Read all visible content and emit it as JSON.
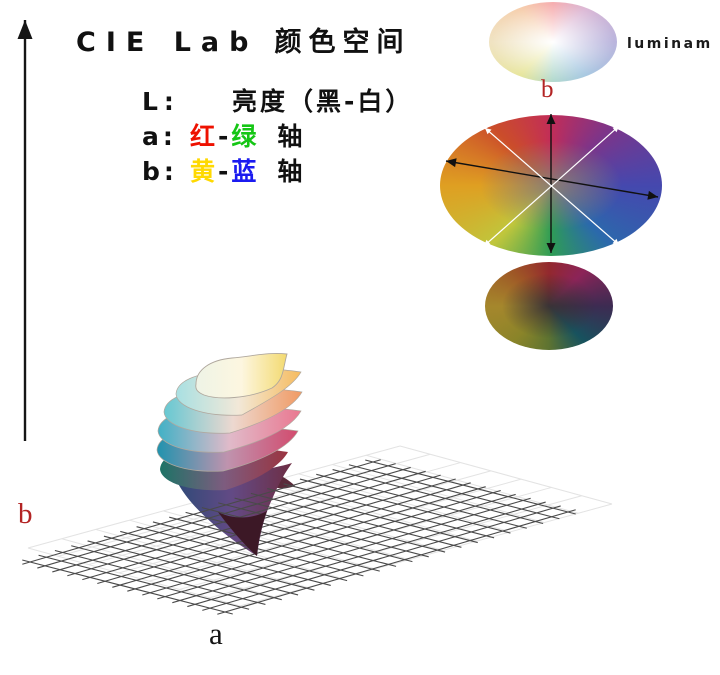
{
  "title": {
    "latin": "CIE Lab",
    "cjk": "颜色空间"
  },
  "legend": {
    "line_l": {
      "key": "L:",
      "value": "亮度（黑-白）"
    },
    "line_a": {
      "key": "a:",
      "first": "红",
      "dash": "-",
      "second": "绿",
      "suffix": "轴"
    },
    "line_b": {
      "key": "b:",
      "first": "黄",
      "dash": "-",
      "second": "蓝",
      "suffix": "轴"
    }
  },
  "colors": {
    "red": "#ee1100",
    "green": "#15c615",
    "yellow": "#ffd900",
    "blue": "#1b1bf0",
    "label_red": "#b32424",
    "text": "#111111"
  },
  "right_panel": {
    "luminance_label": "luminam",
    "b_label": "b"
  },
  "axes": {
    "a_label": "a",
    "b_label": "b"
  },
  "ellipses": {
    "top": {
      "ring": [
        "#f0e3c2",
        "#f6cfae",
        "#f6aeb0",
        "#dcb9d6",
        "#bab5dd",
        "#a9c9e2",
        "#b4dacf",
        "#e8e69e"
      ],
      "center": "#ffffff",
      "center_fade": "68%"
    },
    "wheel": {
      "ring": [
        "#df9f22",
        "#cb4d2a",
        "#c22d58",
        "#7e3488",
        "#4548ae",
        "#2b69ac",
        "#2e9c55",
        "#c0c63c"
      ],
      "center": "#8b7e72",
      "center_fade": "45%"
    },
    "bottom": {
      "ring": [
        "#a5872c",
        "#9e5526",
        "#93282e",
        "#8c2458",
        "#3d2b52",
        "#17525e",
        "#5d7331",
        "#8a8429"
      ],
      "center": "#3a3336",
      "center_fade": "52%"
    }
  },
  "figure": {
    "petals": [
      {
        "colors": [
          "#eef4e6",
          "#fdf6e0",
          "#f3da70"
        ]
      },
      {
        "colors": [
          "#a8e0e2",
          "#f2e8d8",
          "#f6bb5e"
        ]
      },
      {
        "colors": [
          "#66c8d2",
          "#edd8d0",
          "#f09a63"
        ]
      },
      {
        "colors": [
          "#41b1c6",
          "#e0bac9",
          "#ea7890"
        ]
      },
      {
        "colors": [
          "#2093ae",
          "#bf93ae",
          "#d34b6e"
        ]
      },
      {
        "colors": [
          "#1d7366",
          "#7d5c7f",
          "#9b3440"
        ]
      },
      {
        "colors": [
          "#2b4a77",
          "#634a85",
          "#6e2e44"
        ]
      }
    ],
    "cone_tip_color": "#3c1826",
    "hook_color": "#5a2a3a",
    "grid_dark_color": "#4a4a4a",
    "grid_light_color": "#e3e3e3",
    "axis_color": "#151515",
    "spoke_white": "#ffffff"
  }
}
